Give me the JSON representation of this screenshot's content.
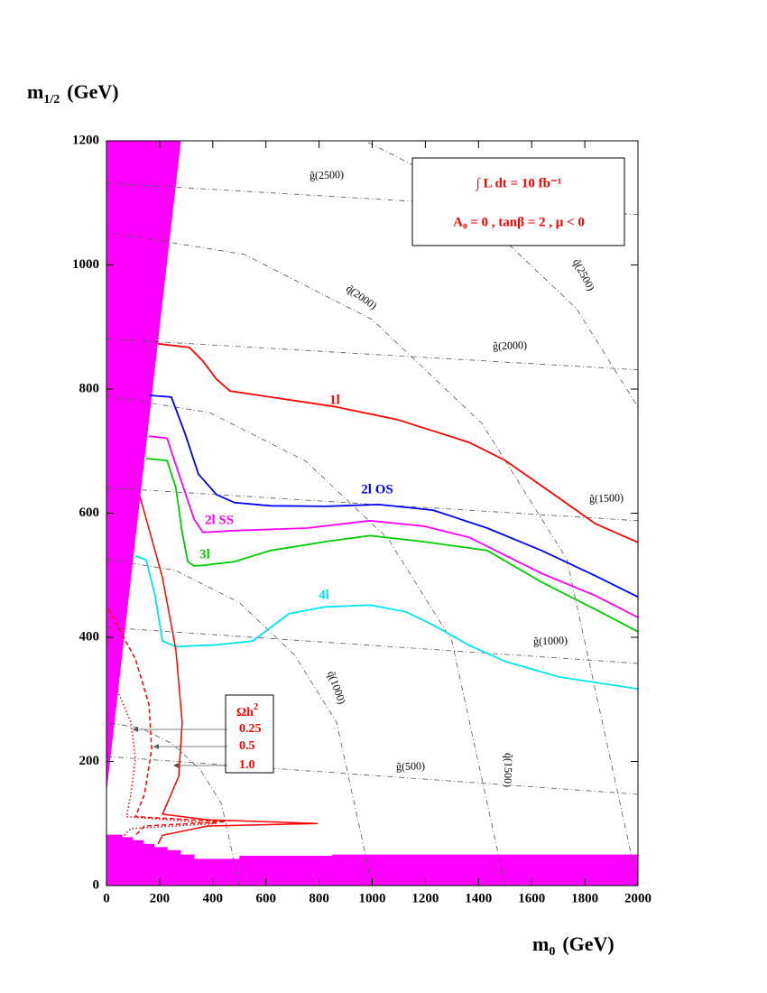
{
  "chart_data": {
    "type": "line",
    "x_label": {
      "main": "m",
      "sub": "0",
      "unit": "(GeV)"
    },
    "y_label": {
      "main": "m",
      "sub": "1/2",
      "unit": "(GeV)"
    },
    "info": [
      "∫ L dt = 10 fb⁻¹",
      "A₀ = 0 ,  tanβ = 2 ,  μ < 0"
    ],
    "xlim": [
      0,
      2000
    ],
    "ylim": [
      0,
      1200
    ],
    "xticks": [
      0,
      200,
      400,
      600,
      800,
      1000,
      1200,
      1400,
      1600,
      1800,
      2000
    ],
    "yticks": [
      0,
      200,
      400,
      600,
      800,
      1000,
      1200
    ],
    "series": [
      {
        "name": "1l",
        "color": "#ff0000",
        "x": [
          194,
          312,
          363,
          414,
          465,
          618,
          856,
          1093,
          1365,
          1501,
          1671,
          1840,
          2000
        ],
        "values": [
          873,
          867,
          845,
          816,
          797,
          787,
          772,
          751,
          714,
          685,
          634,
          583,
          553
        ]
      },
      {
        "name": "2l OS",
        "color": "#0000ff",
        "x": [
          160,
          244,
          295,
          346,
          414,
          482,
          618,
          822,
          1025,
          1229,
          1433,
          1637,
          1840,
          2000
        ],
        "values": [
          790,
          787,
          729,
          663,
          630,
          617,
          612,
          611,
          614,
          605,
          576,
          540,
          499,
          465
        ]
      },
      {
        "name": "2l SS",
        "color": "#ff00ff",
        "x": [
          160,
          228,
          278,
          329,
          363,
          482,
          754,
          992,
          1195,
          1365,
          1637,
          1840,
          2000
        ],
        "values": [
          724,
          721,
          656,
          591,
          569,
          572,
          576,
          588,
          579,
          561,
          503,
          467,
          432
        ]
      },
      {
        "name": "3l",
        "color": "#00cc00",
        "x": [
          149,
          228,
          261,
          285,
          306,
          329,
          363,
          482,
          618,
          822,
          992,
          1195,
          1433,
          1637,
          1840,
          2000
        ],
        "values": [
          688,
          685,
          641,
          569,
          522,
          515,
          516,
          522,
          540,
          554,
          564,
          554,
          540,
          489,
          445,
          409
        ]
      },
      {
        "name": "4l",
        "color": "#00e5ee",
        "x": [
          109,
          149,
          183,
          211,
          261,
          414,
          550,
          618,
          686,
          822,
          992,
          1127,
          1229,
          1365,
          1501,
          1705,
          2000
        ],
        "values": [
          531,
          525,
          467,
          394,
          385,
          388,
          394,
          416,
          438,
          449,
          452,
          441,
          420,
          387,
          361,
          336,
          317
        ]
      }
    ],
    "relic": {
      "title": {
        "main": "Ωh",
        "sup": "2"
      },
      "color": "#ff0000",
      "series": [
        {
          "name": "0.25",
          "dash": "dotted",
          "x": [
            41,
            92,
            109,
            92,
            75,
            414,
            92,
            58
          ],
          "values": [
            314,
            263,
            205,
            147,
            111,
            100,
            92,
            77
          ]
        },
        {
          "name": "0.5",
          "dash": "dashed",
          "x": [
            7,
            109,
            160,
            170,
            143,
            109,
            448,
            143,
            109
          ],
          "values": [
            445,
            365,
            292,
            220,
            147,
            111,
            103,
            96,
            81
          ]
        },
        {
          "name": "1.0",
          "dash": "solid",
          "x": [
            126,
            211,
            261,
            285,
            272,
            228,
            211,
            380,
            795,
            380,
            211,
            194
          ],
          "values": [
            627,
            496,
            380,
            263,
            176,
            132,
            115,
            106,
            100,
            96,
            81,
            67
          ]
        }
      ]
    },
    "regions": [
      {
        "color": "#ff00ff",
        "x": [
          0,
          280,
          0
        ],
        "values": [
          1200,
          1200,
          150
        ]
      },
      {
        "color": "#ff00ff",
        "x": [
          0,
          60,
          60,
          100,
          100,
          140,
          140,
          180,
          180,
          230,
          230,
          280,
          280,
          330,
          330,
          500,
          500,
          850,
          850,
          2000,
          2000,
          0
        ],
        "values": [
          82,
          82,
          78,
          78,
          73,
          73,
          67,
          67,
          62,
          62,
          57,
          57,
          50,
          50,
          43,
          43,
          48,
          48,
          50,
          50,
          0,
          0
        ]
      }
    ],
    "contours": [
      {
        "label": "g̃(2500)",
        "x": [
          0,
          2000
        ],
        "values": [
          1132,
          1081
        ]
      },
      {
        "label": "g̃(2000)",
        "x": [
          0,
          2000
        ],
        "values": [
          881,
          831
        ]
      },
      {
        "label": "g̃(1500)",
        "x": [
          0,
          2000
        ],
        "values": [
          641,
          588
        ]
      },
      {
        "label": "g̃(1000)",
        "x": [
          0,
          2000
        ],
        "values": [
          416,
          358
        ]
      },
      {
        "label": "g̃(500)",
        "x": [
          0,
          2000
        ],
        "values": [
          208,
          147
        ]
      },
      {
        "x": [
          500,
          433,
          354,
          250,
          129,
          0
        ],
        "values": [
          0,
          132,
          186,
          228,
          254,
          263
        ]
      },
      {
        "label": "q̃(1000)",
        "x": [
          1000,
          866,
          707,
          500,
          259,
          0
        ],
        "values": [
          0,
          263,
          372,
          456,
          508,
          526
        ]
      },
      {
        "label": "q̃(1500)",
        "x": [
          1500,
          1299,
          1061,
          750,
          388,
          0
        ],
        "values": [
          0,
          395,
          558,
          684,
          762,
          789
        ]
      },
      {
        "label": "q̃(2000)",
        "x": [
          2000,
          1732,
          1414,
          1000,
          518,
          0
        ],
        "values": [
          0,
          526,
          744,
          912,
          1017,
          1053
        ]
      },
      {
        "label": "q̃(2500)",
        "x": [
          2500,
          2165,
          1768,
          1250,
          647,
          0
        ],
        "values": [
          0,
          658,
          930,
          1140,
          1271,
          1316
        ]
      }
    ]
  }
}
